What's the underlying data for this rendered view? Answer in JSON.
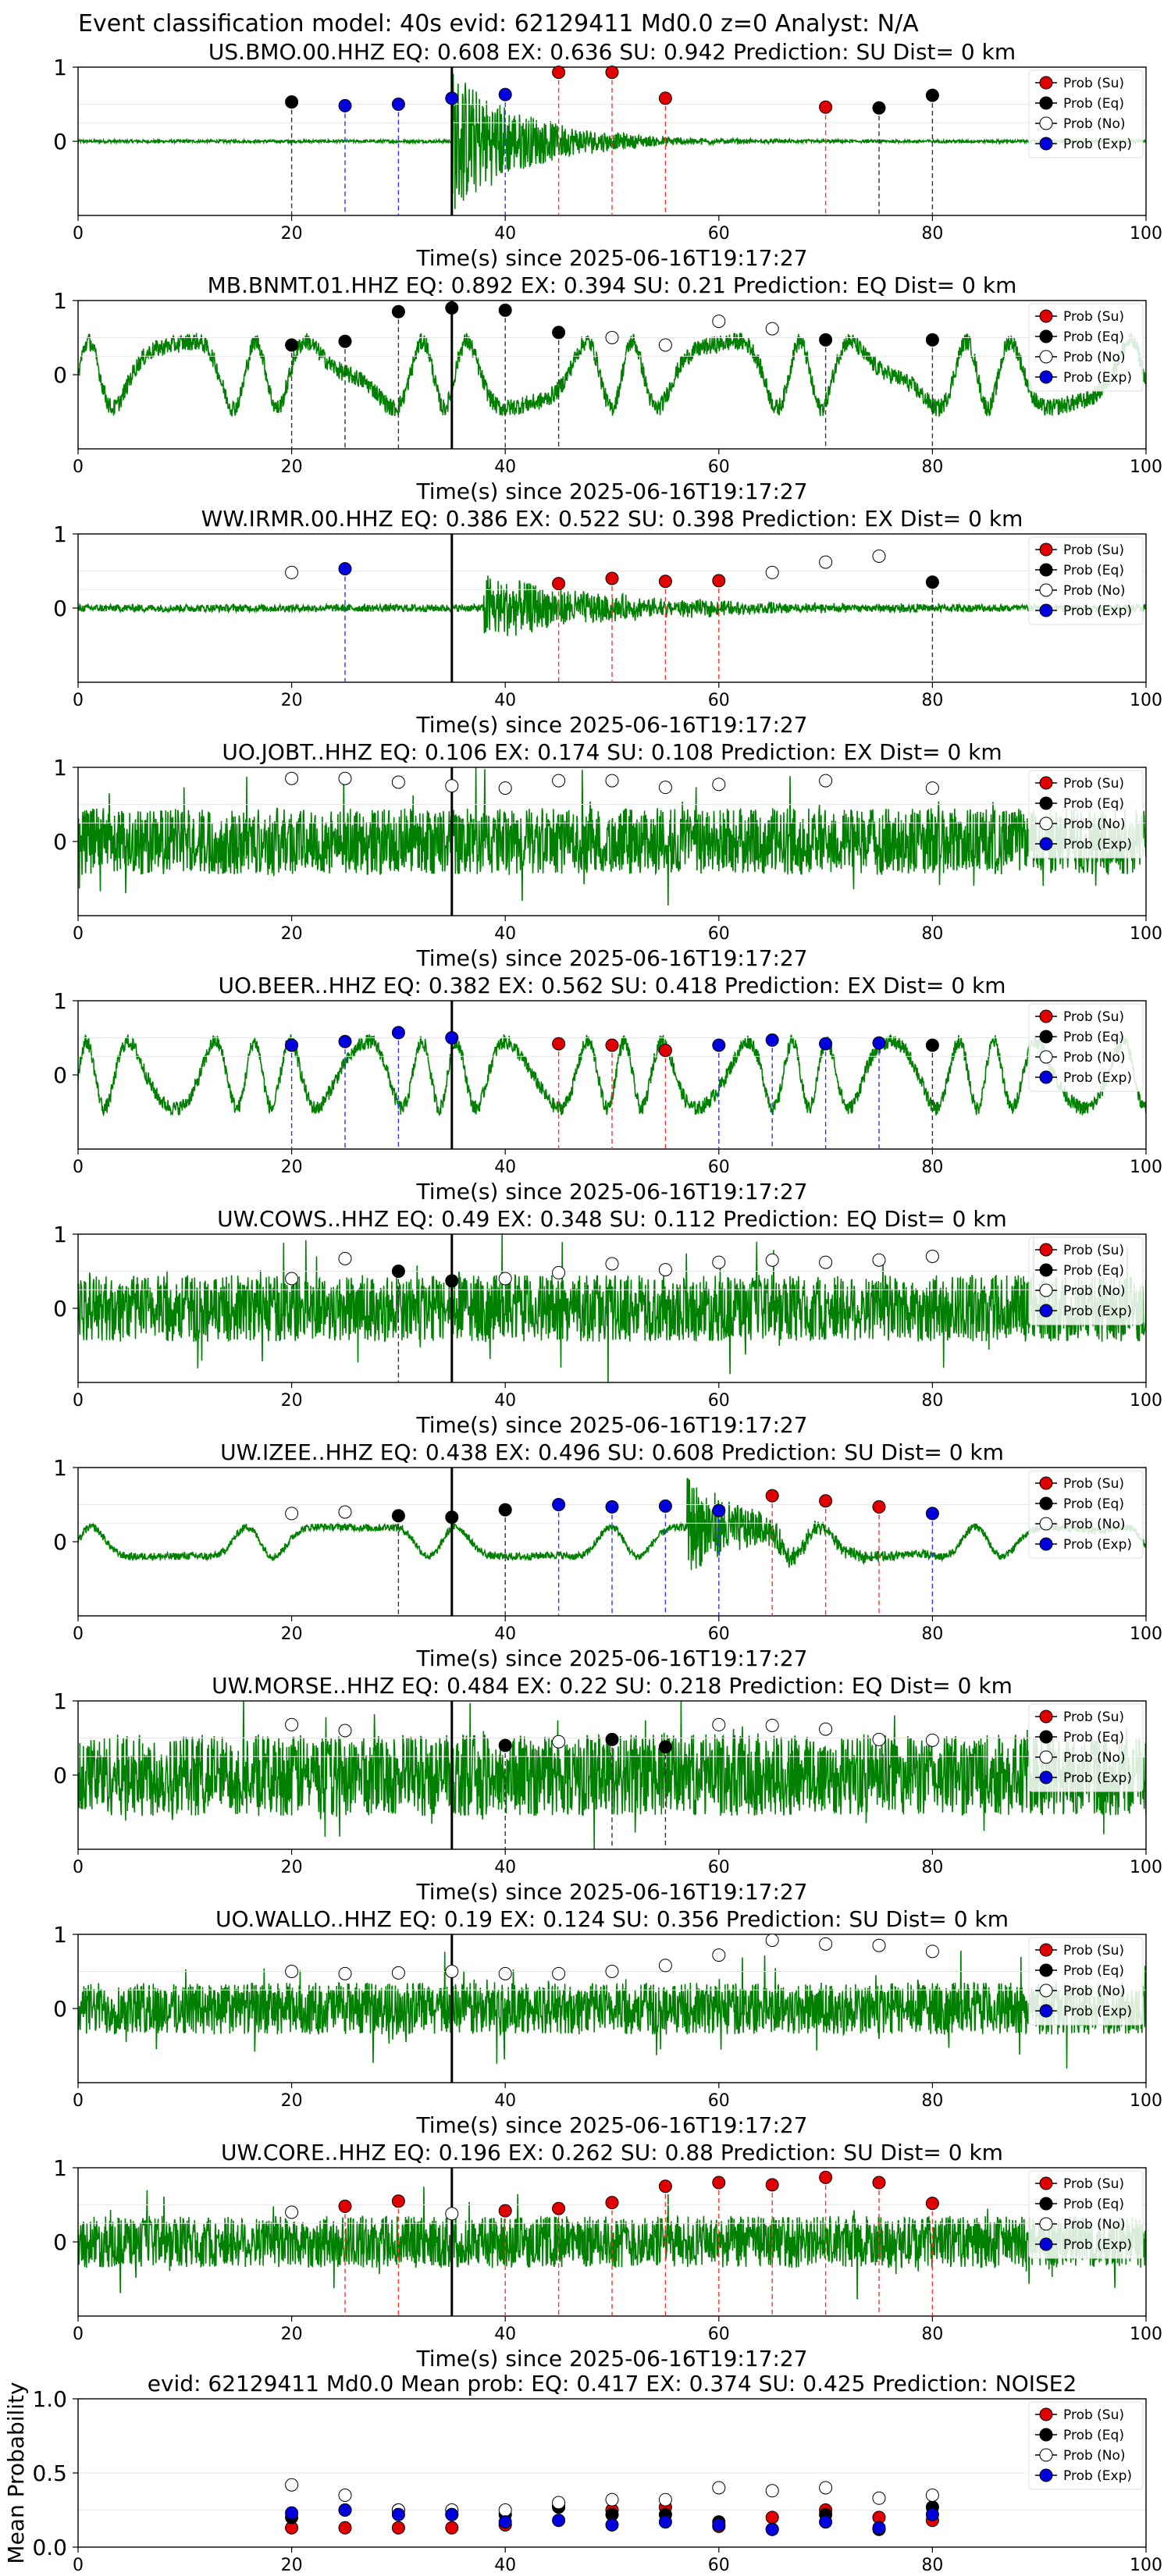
{
  "figure_title": "Event classification model: 40s evid: 62129411 Md0.0 z=0 Analyst: N/A",
  "legend_labels": [
    "Prob (Su)",
    "Prob (Eq)",
    "Prob (No)",
    "Prob (Exp)"
  ],
  "colors": {
    "su": "#e00000",
    "eq": "#000000",
    "no": "#ffffff",
    "exp": "#0000dd",
    "wave": "#008000",
    "arrival": "#000000"
  },
  "chart_data": [
    {
      "type": "line",
      "title": "US.BMO.00.HHZ   EQ: 0.608  EX: 0.636  SU: 0.942   Prediction: SU    Dist= 0 km",
      "xlabel": "Time(s) since 2025-06-16T19:17:27",
      "xlim": [
        0,
        100
      ],
      "ylim": [
        -1,
        1
      ],
      "xticks": [
        "0",
        "20",
        "40",
        "60",
        "80",
        "100"
      ],
      "yticks": [
        "1",
        "0"
      ],
      "arrival_time": 35,
      "waveform": {
        "style": "burst",
        "noise": 0.02,
        "burst_start": 35,
        "burst_peak": 1.0,
        "burst_decay": 7
      },
      "points": [
        {
          "t": 20,
          "cls": "eq",
          "p": 0.53
        },
        {
          "t": 25,
          "cls": "exp",
          "p": 0.48
        },
        {
          "t": 30,
          "cls": "exp",
          "p": 0.5
        },
        {
          "t": 35,
          "cls": "exp",
          "p": 0.58
        },
        {
          "t": 40,
          "cls": "exp",
          "p": 0.63
        },
        {
          "t": 45,
          "cls": "su",
          "p": 0.93
        },
        {
          "t": 50,
          "cls": "su",
          "p": 0.93
        },
        {
          "t": 55,
          "cls": "su",
          "p": 0.58
        },
        {
          "t": 70,
          "cls": "su",
          "p": 0.46
        },
        {
          "t": 75,
          "cls": "eq",
          "p": 0.45
        },
        {
          "t": 80,
          "cls": "eq",
          "p": 0.62
        }
      ]
    },
    {
      "type": "line",
      "title": "MB.BNMT.01.HHZ   EQ: 0.892  EX: 0.394  SU: 0.21   Prediction: EQ    Dist= 0 km",
      "xlabel": "Time(s) since 2025-06-16T19:17:27",
      "xlim": [
        0,
        100
      ],
      "ylim": [
        -1,
        1
      ],
      "xticks": [
        "0",
        "20",
        "40",
        "60",
        "80",
        "100"
      ],
      "yticks": [
        "1",
        "0"
      ],
      "arrival_time": 35,
      "waveform": {
        "style": "wavy",
        "amp": 0.45,
        "freq": 0.55,
        "noise": 0.12
      },
      "points": [
        {
          "t": 20,
          "cls": "eq",
          "p": 0.4
        },
        {
          "t": 25,
          "cls": "eq",
          "p": 0.45
        },
        {
          "t": 30,
          "cls": "eq",
          "p": 0.85
        },
        {
          "t": 35,
          "cls": "eq",
          "p": 0.9
        },
        {
          "t": 40,
          "cls": "eq",
          "p": 0.87
        },
        {
          "t": 45,
          "cls": "eq",
          "p": 0.57
        },
        {
          "t": 50,
          "cls": "no",
          "p": 0.5
        },
        {
          "t": 55,
          "cls": "no",
          "p": 0.4
        },
        {
          "t": 60,
          "cls": "no",
          "p": 0.72
        },
        {
          "t": 65,
          "cls": "no",
          "p": 0.62
        },
        {
          "t": 70,
          "cls": "eq",
          "p": 0.47
        },
        {
          "t": 80,
          "cls": "eq",
          "p": 0.47
        }
      ]
    },
    {
      "type": "line",
      "title": "WW.IRMR.00.HHZ   EQ: 0.386  EX: 0.522  SU: 0.398   Prediction: EX    Dist= 0 km",
      "xlabel": "Time(s) since 2025-06-16T19:17:27",
      "xlim": [
        0,
        100
      ],
      "ylim": [
        -1,
        1
      ],
      "xticks": [
        "0",
        "20",
        "40",
        "60",
        "80",
        "100"
      ],
      "yticks": [
        "1",
        "0"
      ],
      "arrival_time": 35,
      "waveform": {
        "style": "burst",
        "noise": 0.05,
        "burst_start": 38,
        "burst_peak": 0.45,
        "burst_decay": 12
      },
      "points": [
        {
          "t": 20,
          "cls": "no",
          "p": 0.48
        },
        {
          "t": 25,
          "cls": "exp",
          "p": 0.53
        },
        {
          "t": 45,
          "cls": "su",
          "p": 0.33
        },
        {
          "t": 50,
          "cls": "su",
          "p": 0.4
        },
        {
          "t": 55,
          "cls": "su",
          "p": 0.36
        },
        {
          "t": 60,
          "cls": "su",
          "p": 0.37
        },
        {
          "t": 65,
          "cls": "no",
          "p": 0.48
        },
        {
          "t": 70,
          "cls": "no",
          "p": 0.62
        },
        {
          "t": 75,
          "cls": "no",
          "p": 0.7
        },
        {
          "t": 80,
          "cls": "eq",
          "p": 0.35
        }
      ]
    },
    {
      "type": "line",
      "title": "UO.JOBT..HHZ   EQ: 0.106  EX: 0.174  SU: 0.108   Prediction: EX    Dist= 0 km",
      "xlabel": "Time(s) since 2025-06-16T19:17:27",
      "xlim": [
        0,
        100
      ],
      "ylim": [
        -1,
        1
      ],
      "xticks": [
        "0",
        "20",
        "40",
        "60",
        "80",
        "100"
      ],
      "yticks": [
        "1",
        "0"
      ],
      "arrival_time": 35,
      "waveform": {
        "style": "noise",
        "noise": 0.45
      },
      "points": [
        {
          "t": 20,
          "cls": "no",
          "p": 0.85
        },
        {
          "t": 25,
          "cls": "no",
          "p": 0.85
        },
        {
          "t": 30,
          "cls": "no",
          "p": 0.8
        },
        {
          "t": 35,
          "cls": "no",
          "p": 0.75
        },
        {
          "t": 40,
          "cls": "no",
          "p": 0.72
        },
        {
          "t": 45,
          "cls": "no",
          "p": 0.82
        },
        {
          "t": 50,
          "cls": "no",
          "p": 0.82
        },
        {
          "t": 55,
          "cls": "no",
          "p": 0.73
        },
        {
          "t": 60,
          "cls": "no",
          "p": 0.77
        },
        {
          "t": 70,
          "cls": "no",
          "p": 0.82
        },
        {
          "t": 80,
          "cls": "no",
          "p": 0.72
        }
      ]
    },
    {
      "type": "line",
      "title": "UO.BEER..HHZ   EQ: 0.382  EX: 0.562  SU: 0.418   Prediction: EX    Dist= 0 km",
      "xlabel": "Time(s) since 2025-06-16T19:17:27",
      "xlim": [
        0,
        100
      ],
      "ylim": [
        -1,
        1
      ],
      "xticks": [
        "0",
        "20",
        "40",
        "60",
        "80",
        "100"
      ],
      "yticks": [
        "1",
        "0"
      ],
      "arrival_time": 35,
      "waveform": {
        "style": "wavy",
        "amp": 0.45,
        "freq": 0.8,
        "noise": 0.1
      },
      "points": [
        {
          "t": 20,
          "cls": "exp",
          "p": 0.4
        },
        {
          "t": 25,
          "cls": "exp",
          "p": 0.45
        },
        {
          "t": 30,
          "cls": "exp",
          "p": 0.57
        },
        {
          "t": 35,
          "cls": "exp",
          "p": 0.5
        },
        {
          "t": 45,
          "cls": "su",
          "p": 0.42
        },
        {
          "t": 50,
          "cls": "su",
          "p": 0.4
        },
        {
          "t": 55,
          "cls": "su",
          "p": 0.33
        },
        {
          "t": 60,
          "cls": "exp",
          "p": 0.4
        },
        {
          "t": 65,
          "cls": "exp",
          "p": 0.47
        },
        {
          "t": 70,
          "cls": "exp",
          "p": 0.42
        },
        {
          "t": 75,
          "cls": "exp",
          "p": 0.43
        },
        {
          "t": 80,
          "cls": "eq",
          "p": 0.4
        }
      ]
    },
    {
      "type": "line",
      "title": "UW.COWS..HHZ   EQ: 0.49  EX: 0.348  SU: 0.112   Prediction: EQ    Dist= 0 km",
      "xlabel": "Time(s) since 2025-06-16T19:17:27",
      "xlim": [
        0,
        100
      ],
      "ylim": [
        -1,
        1
      ],
      "xticks": [
        "0",
        "20",
        "40",
        "60",
        "80",
        "100"
      ],
      "yticks": [
        "1",
        "0"
      ],
      "arrival_time": 35,
      "waveform": {
        "style": "noise",
        "noise": 0.45
      },
      "points": [
        {
          "t": 20,
          "cls": "no",
          "p": 0.4
        },
        {
          "t": 25,
          "cls": "no",
          "p": 0.67
        },
        {
          "t": 30,
          "cls": "eq",
          "p": 0.5
        },
        {
          "t": 35,
          "cls": "eq",
          "p": 0.37
        },
        {
          "t": 40,
          "cls": "no",
          "p": 0.4
        },
        {
          "t": 45,
          "cls": "no",
          "p": 0.48
        },
        {
          "t": 50,
          "cls": "no",
          "p": 0.6
        },
        {
          "t": 55,
          "cls": "no",
          "p": 0.52
        },
        {
          "t": 60,
          "cls": "no",
          "p": 0.62
        },
        {
          "t": 65,
          "cls": "no",
          "p": 0.65
        },
        {
          "t": 70,
          "cls": "no",
          "p": 0.62
        },
        {
          "t": 75,
          "cls": "no",
          "p": 0.65
        },
        {
          "t": 80,
          "cls": "no",
          "p": 0.7
        }
      ]
    },
    {
      "type": "line",
      "title": "UW.IZEE..HHZ   EQ: 0.438  EX: 0.496  SU: 0.608   Prediction: SU    Dist= 0 km",
      "xlabel": "Time(s) since 2025-06-16T19:17:27",
      "xlim": [
        0,
        100
      ],
      "ylim": [
        -1,
        1
      ],
      "xticks": [
        "0",
        "20",
        "40",
        "60",
        "80",
        "100"
      ],
      "yticks": [
        "1",
        "0"
      ],
      "arrival_time": 35,
      "waveform": {
        "style": "wavy",
        "amp": 0.2,
        "freq": 0.35,
        "noise": 0.05,
        "burst_start": 57,
        "burst_peak": 0.7,
        "burst_decay": 6
      },
      "points": [
        {
          "t": 20,
          "cls": "no",
          "p": 0.38
        },
        {
          "t": 25,
          "cls": "no",
          "p": 0.4
        },
        {
          "t": 30,
          "cls": "eq",
          "p": 0.35
        },
        {
          "t": 35,
          "cls": "eq",
          "p": 0.33
        },
        {
          "t": 40,
          "cls": "eq",
          "p": 0.43
        },
        {
          "t": 45,
          "cls": "exp",
          "p": 0.5
        },
        {
          "t": 50,
          "cls": "exp",
          "p": 0.47
        },
        {
          "t": 55,
          "cls": "exp",
          "p": 0.48
        },
        {
          "t": 60,
          "cls": "exp",
          "p": 0.42
        },
        {
          "t": 65,
          "cls": "su",
          "p": 0.62
        },
        {
          "t": 70,
          "cls": "su",
          "p": 0.55
        },
        {
          "t": 75,
          "cls": "su",
          "p": 0.47
        },
        {
          "t": 80,
          "cls": "exp",
          "p": 0.38
        }
      ]
    },
    {
      "type": "line",
      "title": "UW.MORSE..HHZ   EQ: 0.484  EX: 0.22  SU: 0.218   Prediction: EQ    Dist= 0 km",
      "xlabel": "Time(s) since 2025-06-16T19:17:27",
      "xlim": [
        0,
        100
      ],
      "ylim": [
        -1,
        1
      ],
      "xticks": [
        "0",
        "20",
        "40",
        "60",
        "80",
        "100"
      ],
      "yticks": [
        "1",
        "0"
      ],
      "arrival_time": 35,
      "waveform": {
        "style": "noise",
        "noise": 0.55
      },
      "points": [
        {
          "t": 20,
          "cls": "no",
          "p": 0.68
        },
        {
          "t": 25,
          "cls": "no",
          "p": 0.6
        },
        {
          "t": 40,
          "cls": "eq",
          "p": 0.4
        },
        {
          "t": 45,
          "cls": "no",
          "p": 0.45
        },
        {
          "t": 50,
          "cls": "eq",
          "p": 0.48
        },
        {
          "t": 55,
          "cls": "eq",
          "p": 0.38
        },
        {
          "t": 60,
          "cls": "no",
          "p": 0.68
        },
        {
          "t": 65,
          "cls": "no",
          "p": 0.67
        },
        {
          "t": 70,
          "cls": "no",
          "p": 0.62
        },
        {
          "t": 75,
          "cls": "no",
          "p": 0.48
        },
        {
          "t": 80,
          "cls": "no",
          "p": 0.47
        }
      ]
    },
    {
      "type": "line",
      "title": "UO.WALLO..HHZ   EQ: 0.19  EX: 0.124  SU: 0.356   Prediction: SU    Dist= 0 km",
      "xlabel": "Time(s) since 2025-06-16T19:17:27",
      "xlim": [
        0,
        100
      ],
      "ylim": [
        -1,
        1
      ],
      "xticks": [
        "0",
        "20",
        "40",
        "60",
        "80",
        "100"
      ],
      "yticks": [
        "1",
        "0"
      ],
      "arrival_time": 35,
      "waveform": {
        "style": "noise",
        "noise": 0.35
      },
      "points": [
        {
          "t": 20,
          "cls": "no",
          "p": 0.5
        },
        {
          "t": 25,
          "cls": "no",
          "p": 0.47
        },
        {
          "t": 30,
          "cls": "no",
          "p": 0.48
        },
        {
          "t": 35,
          "cls": "no",
          "p": 0.5
        },
        {
          "t": 40,
          "cls": "no",
          "p": 0.47
        },
        {
          "t": 45,
          "cls": "no",
          "p": 0.47
        },
        {
          "t": 50,
          "cls": "no",
          "p": 0.5
        },
        {
          "t": 55,
          "cls": "no",
          "p": 0.58
        },
        {
          "t": 60,
          "cls": "no",
          "p": 0.72
        },
        {
          "t": 65,
          "cls": "no",
          "p": 0.92
        },
        {
          "t": 70,
          "cls": "no",
          "p": 0.87
        },
        {
          "t": 75,
          "cls": "no",
          "p": 0.85
        },
        {
          "t": 80,
          "cls": "no",
          "p": 0.77
        }
      ]
    },
    {
      "type": "line",
      "title": "UW.CORE..HHZ   EQ: 0.196  EX: 0.262  SU: 0.88   Prediction: SU    Dist= 0 km",
      "xlabel": "Time(s) since 2025-06-16T19:17:27",
      "xlim": [
        0,
        100
      ],
      "ylim": [
        -1,
        1
      ],
      "xticks": [
        "0",
        "20",
        "40",
        "60",
        "80",
        "100"
      ],
      "yticks": [
        "1",
        "0"
      ],
      "arrival_time": 35,
      "waveform": {
        "style": "noise",
        "noise": 0.35
      },
      "points": [
        {
          "t": 20,
          "cls": "no",
          "p": 0.4
        },
        {
          "t": 25,
          "cls": "su",
          "p": 0.48
        },
        {
          "t": 30,
          "cls": "su",
          "p": 0.55
        },
        {
          "t": 35,
          "cls": "no",
          "p": 0.38
        },
        {
          "t": 40,
          "cls": "su",
          "p": 0.42
        },
        {
          "t": 45,
          "cls": "su",
          "p": 0.45
        },
        {
          "t": 50,
          "cls": "su",
          "p": 0.53
        },
        {
          "t": 55,
          "cls": "su",
          "p": 0.75
        },
        {
          "t": 60,
          "cls": "su",
          "p": 0.8
        },
        {
          "t": 65,
          "cls": "su",
          "p": 0.77
        },
        {
          "t": 70,
          "cls": "su",
          "p": 0.87
        },
        {
          "t": 75,
          "cls": "su",
          "p": 0.8
        },
        {
          "t": 80,
          "cls": "su",
          "p": 0.52
        }
      ]
    },
    {
      "type": "scatter",
      "title": "evid: 62129411  Md0.0   Mean prob:   EQ: 0.417  EX: 0.374  SU: 0.425   Prediction: NOISE2",
      "ylabel": "Mean Probability",
      "xlim": [
        0,
        100
      ],
      "ylim": [
        0,
        1
      ],
      "xticks": [
        "0",
        "20",
        "40",
        "60",
        "80",
        "100"
      ],
      "yticks": [
        "1.0",
        "0.5",
        "0.0"
      ],
      "series": [
        {
          "name": "Prob (Su)",
          "cls": "su",
          "x": [
            20,
            25,
            30,
            35,
            40,
            45,
            50,
            55,
            60,
            65,
            70,
            75,
            80
          ],
          "y": [
            0.13,
            0.13,
            0.13,
            0.13,
            0.15,
            0.28,
            0.25,
            0.27,
            0.14,
            0.2,
            0.25,
            0.2,
            0.18
          ]
        },
        {
          "name": "Prob (Eq)",
          "cls": "eq",
          "x": [
            20,
            25,
            30,
            35,
            40,
            45,
            50,
            55,
            60,
            65,
            70,
            75,
            80
          ],
          "y": [
            0.2,
            0.25,
            0.25,
            0.22,
            0.22,
            0.27,
            0.22,
            0.22,
            0.17,
            0.12,
            0.22,
            0.12,
            0.27
          ]
        },
        {
          "name": "Prob (No)",
          "cls": "no",
          "x": [
            20,
            25,
            30,
            35,
            40,
            45,
            50,
            55,
            60,
            65,
            70,
            75,
            80
          ],
          "y": [
            0.42,
            0.35,
            0.25,
            0.25,
            0.25,
            0.3,
            0.32,
            0.32,
            0.4,
            0.38,
            0.4,
            0.33,
            0.35
          ]
        },
        {
          "name": "Prob (Exp)",
          "cls": "exp",
          "x": [
            20,
            25,
            30,
            35,
            40,
            45,
            50,
            55,
            60,
            65,
            70,
            75,
            80
          ],
          "y": [
            0.23,
            0.25,
            0.22,
            0.22,
            0.17,
            0.18,
            0.15,
            0.17,
            0.15,
            0.12,
            0.17,
            0.13,
            0.22
          ]
        }
      ]
    }
  ]
}
